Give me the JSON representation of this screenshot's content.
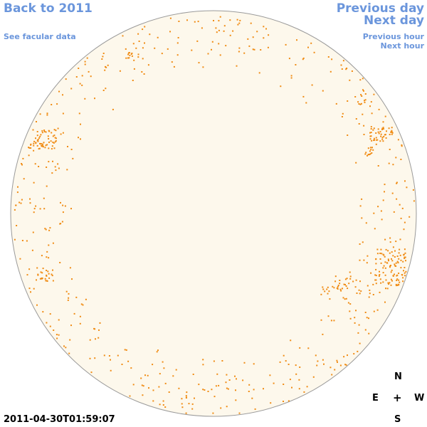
{
  "nav": {
    "back": "Back to 2011",
    "facular": "See facular data",
    "prev_day": "Previous day",
    "next_day": "Next day",
    "prev_hour": "Previous hour",
    "next_hour": "Next hour"
  },
  "timestamp": "2011-04-30T01:59:07",
  "compass": {
    "n": "N",
    "e": "E",
    "plus": "+",
    "w": "W",
    "s": "S"
  },
  "colors": {
    "disk_fill": "#fdf8ec",
    "disk_stroke": "#9a9a9a",
    "facula": "#f08c14",
    "link": "#6b96dc"
  }
}
